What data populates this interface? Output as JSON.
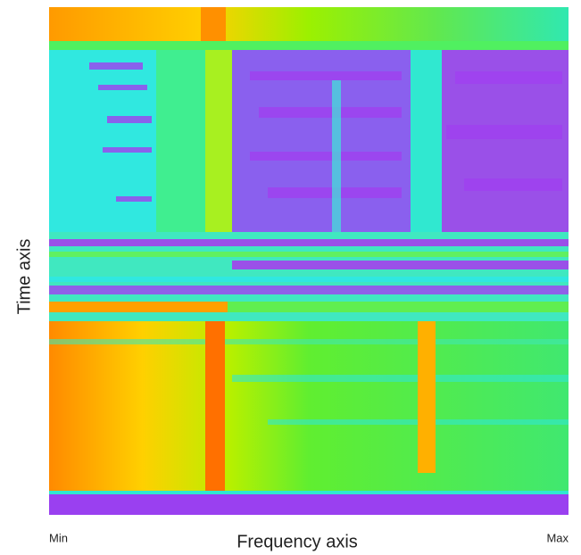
{
  "figure": {
    "y_label": "Time axis",
    "x_label": "Frequency axis",
    "x_min_label": "Min",
    "x_max_label": "Max"
  }
}
